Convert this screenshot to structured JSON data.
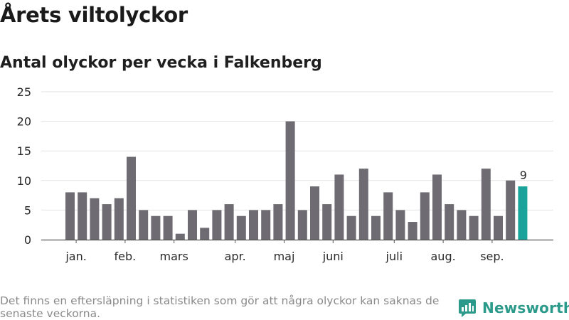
{
  "title": "Årets viltolyckor",
  "subtitle": "Antal olyckor per vecka i Falkenberg",
  "footer": {
    "note": "Det finns en eftersläpning i statistiken som gör att några olyckor kan saknas de senaste veckorna.",
    "brand": "Newsworthy"
  },
  "colors": {
    "bar": "#6e6c72",
    "highlight": "#1aa39a",
    "grid": "#e2e2e2",
    "axis": "#555555",
    "brand": "#2b9a8a"
  },
  "chart_data": {
    "type": "bar",
    "values": [
      8,
      8,
      7,
      6,
      7,
      14,
      5,
      4,
      4,
      1,
      5,
      2,
      5,
      6,
      4,
      5,
      5,
      6,
      20,
      5,
      9,
      6,
      11,
      4,
      12,
      4,
      8,
      5,
      3,
      8,
      11,
      6,
      5,
      4,
      12,
      4,
      10,
      9
    ],
    "highlight_last": true,
    "last_value_label": "9",
    "ylim": [
      0,
      25
    ],
    "yticks": [
      "0",
      "5",
      "10",
      "15",
      "20",
      "25"
    ],
    "ytick_values": [
      0,
      5,
      10,
      15,
      20,
      25
    ],
    "month_labels": [
      {
        "label": "jan.",
        "bar_index": 0.5
      },
      {
        "label": "feb.",
        "bar_index": 4.5
      },
      {
        "label": "mars",
        "bar_index": 8.5
      },
      {
        "label": "apr.",
        "bar_index": 13.5
      },
      {
        "label": "maj",
        "bar_index": 17.5
      },
      {
        "label": "juni",
        "bar_index": 21.5
      },
      {
        "label": "juli",
        "bar_index": 26.5
      },
      {
        "label": "aug.",
        "bar_index": 30.5
      },
      {
        "label": "sep.",
        "bar_index": 34.5
      }
    ],
    "grid": true,
    "xlabel": "",
    "ylabel": ""
  }
}
